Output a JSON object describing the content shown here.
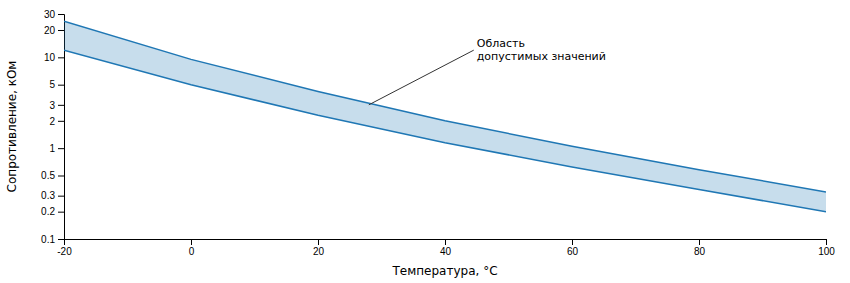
{
  "chart_data": {
    "type": "range_area",
    "x_label": "Температура, °C",
    "y_label": "Сопротивление, кОм",
    "x": [
      -20,
      0,
      20,
      40,
      60,
      80,
      100
    ],
    "series": [
      {
        "values": [
          25,
          9.5,
          4.2,
          2.0,
          1.05,
          0.58,
          0.33
        ]
      },
      {
        "values": [
          12,
          5.0,
          2.3,
          1.15,
          0.62,
          0.35,
          0.2
        ]
      }
    ],
    "xlim": [
      -20,
      100
    ],
    "xticks": [
      -20,
      0,
      20,
      40,
      60,
      80,
      100
    ],
    "ylim": [
      0.1,
      30
    ],
    "yticks": [
      0.1,
      0.2,
      0.3,
      0.5,
      1,
      2,
      3,
      5,
      10,
      20,
      30
    ],
    "log": "y",
    "grid": false,
    "annotations": [
      {
        "text": "Область\nдопустимых значений",
        "xy": [
          28,
          3.0
        ],
        "xytext": [
          45,
          12
        ]
      }
    ]
  }
}
